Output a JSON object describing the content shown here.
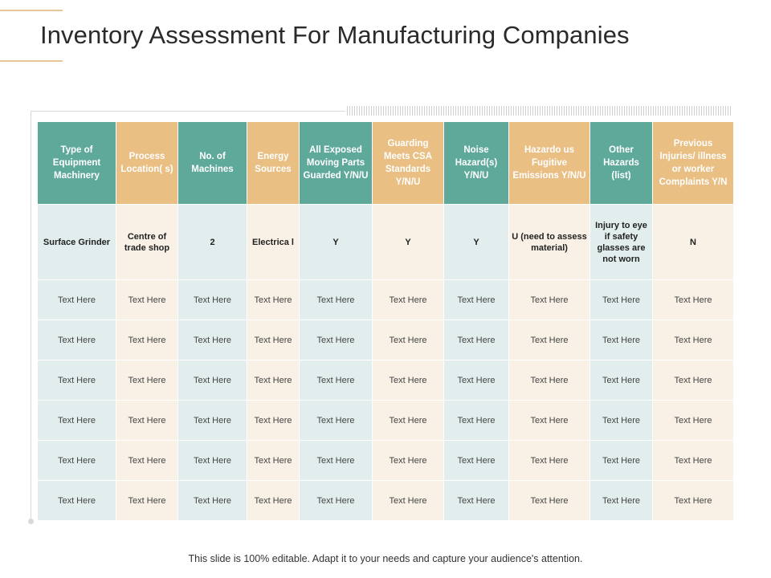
{
  "title": "Inventory Assessment For Manufacturing Companies",
  "colors": {
    "teal_header": "#5fa99b",
    "tan_header": "#e9bf84",
    "teal_cell": "#e2eeee",
    "tan_cell": "#f9f1e6",
    "accent_line": "#e7c79a"
  },
  "table": {
    "headers": [
      "Type of Equipment Machinery",
      "Process Location( s)",
      "No. of Machines",
      "Energy Sources",
      "All Exposed Moving Parts Guarded Y/N/U",
      "Guarding Meets CSA Standards Y/N/U",
      "Noise Hazard(s) Y/N/U",
      "Hazardo us Fugitive Emissions Y/N/U",
      "Other Hazards (list)",
      "Previous Injuries/ illness or worker Complaints Y/N"
    ],
    "first_row": [
      "Surface Grinder",
      "Centre of trade shop",
      "2",
      "Electrica l",
      "Y",
      "Y",
      "Y",
      "U (need to assess material)",
      "Injury to eye if safety glasses are not worn",
      "N"
    ],
    "rows": [
      [
        "Text Here",
        "Text Here",
        "Text Here",
        "Text Here",
        "Text Here",
        "Text Here",
        "Text Here",
        "Text Here",
        "Text Here",
        "Text Here"
      ],
      [
        "Text Here",
        "Text Here",
        "Text Here",
        "Text Here",
        "Text Here",
        "Text Here",
        "Text Here",
        "Text Here",
        "Text Here",
        "Text Here"
      ],
      [
        "Text Here",
        "Text Here",
        "Text Here",
        "Text Here",
        "Text Here",
        "Text Here",
        "Text Here",
        "Text Here",
        "Text Here",
        "Text Here"
      ],
      [
        "Text Here",
        "Text Here",
        "Text Here",
        "Text Here",
        "Text Here",
        "Text Here",
        "Text Here",
        "Text Here",
        "Text Here",
        "Text Here"
      ],
      [
        "Text Here",
        "Text Here",
        "Text Here",
        "Text Here",
        "Text Here",
        "Text Here",
        "Text Here",
        "Text Here",
        "Text Here",
        "Text Here"
      ],
      [
        "Text Here",
        "Text Here",
        "Text Here",
        "Text Here",
        "Text Here",
        "Text Here",
        "Text Here",
        "Text Here",
        "Text Here",
        "Text Here"
      ]
    ]
  },
  "footer": "This slide is 100% editable. Adapt it to your needs and capture your audience's attention."
}
